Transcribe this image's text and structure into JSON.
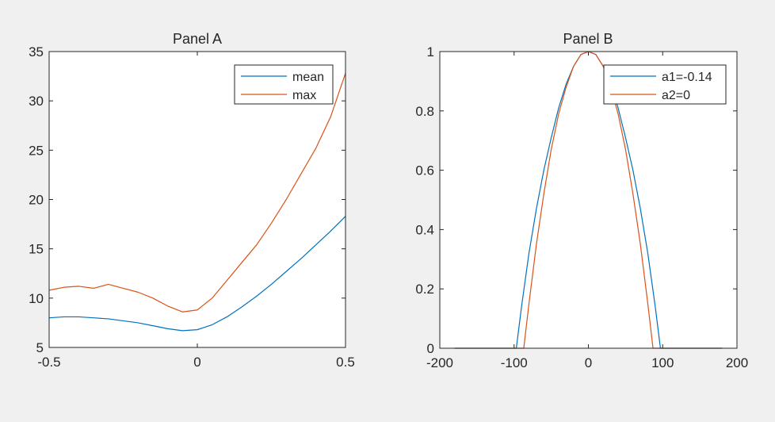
{
  "colors": {
    "background": "#f0f0f0",
    "axes": "#ffffff",
    "series1": "#0072BD",
    "series2": "#D95319"
  },
  "chart_data": [
    {
      "type": "line",
      "title": "Panel A",
      "xlabel": "",
      "ylabel": "",
      "xlim": [
        -0.5,
        0.5
      ],
      "ylim": [
        5,
        35
      ],
      "xticks": [
        "-0.5",
        "0",
        "0.5"
      ],
      "yticks": [
        "5",
        "10",
        "15",
        "20",
        "25",
        "30",
        "35"
      ],
      "grid": false,
      "legend": "top-right",
      "series": [
        {
          "name": "mean",
          "x": [
            -0.5,
            -0.45,
            -0.4,
            -0.35,
            -0.3,
            -0.25,
            -0.2,
            -0.15,
            -0.1,
            -0.05,
            0,
            0.05,
            0.1,
            0.15,
            0.2,
            0.25,
            0.3,
            0.35,
            0.4,
            0.45,
            0.5
          ],
          "y": [
            8.0,
            8.1,
            8.1,
            8.0,
            7.9,
            7.7,
            7.5,
            7.2,
            6.9,
            6.7,
            6.8,
            7.3,
            8.1,
            9.1,
            10.2,
            11.4,
            12.7,
            14.0,
            15.4,
            16.8,
            18.3
          ]
        },
        {
          "name": "max",
          "x": [
            -0.5,
            -0.45,
            -0.4,
            -0.35,
            -0.3,
            -0.25,
            -0.2,
            -0.15,
            -0.1,
            -0.05,
            0,
            0.05,
            0.1,
            0.15,
            0.2,
            0.25,
            0.3,
            0.35,
            0.4,
            0.45,
            0.5
          ],
          "y": [
            10.8,
            11.1,
            11.2,
            11.0,
            11.4,
            11.0,
            10.6,
            10.0,
            9.2,
            8.6,
            8.8,
            10.0,
            11.8,
            13.6,
            15.4,
            17.6,
            20.0,
            22.6,
            25.2,
            28.4,
            32.8
          ]
        }
      ]
    },
    {
      "type": "line",
      "title": "Panel B",
      "xlabel": "",
      "ylabel": "",
      "xlim": [
        -200,
        200
      ],
      "ylim": [
        0,
        1
      ],
      "xticks": [
        "-200",
        "-100",
        "0",
        "100",
        "200"
      ],
      "yticks": [
        "0",
        "0.2",
        "0.4",
        "0.6",
        "0.8",
        "1"
      ],
      "grid": false,
      "legend": "top-right",
      "series": [
        {
          "name": "a1=-0.14",
          "x": [
            -180,
            -150,
            -120,
            -100,
            -97,
            -90,
            -80,
            -70,
            -60,
            -50,
            -40,
            -30,
            -20,
            -10,
            0,
            10,
            20,
            30,
            40,
            50,
            60,
            70,
            80,
            90,
            97,
            100,
            120,
            150,
            180
          ],
          "y": [
            0,
            0,
            0,
            0,
            0,
            0.14,
            0.32,
            0.47,
            0.6,
            0.71,
            0.81,
            0.89,
            0.95,
            0.99,
            1.0,
            0.99,
            0.95,
            0.89,
            0.81,
            0.71,
            0.6,
            0.47,
            0.32,
            0.14,
            0,
            0,
            0,
            0,
            0
          ]
        },
        {
          "name": "a2=0",
          "x": [
            -180,
            -150,
            -120,
            -90,
            -87,
            -80,
            -70,
            -60,
            -50,
            -40,
            -30,
            -20,
            -10,
            0,
            10,
            20,
            30,
            40,
            50,
            60,
            70,
            80,
            87,
            90,
            120,
            150,
            180
          ],
          "y": [
            0,
            0,
            0,
            0,
            0,
            0.15,
            0.35,
            0.52,
            0.67,
            0.79,
            0.88,
            0.95,
            0.99,
            1.0,
            0.99,
            0.95,
            0.88,
            0.79,
            0.67,
            0.52,
            0.35,
            0.15,
            0,
            0,
            0,
            0,
            0
          ]
        }
      ]
    }
  ]
}
